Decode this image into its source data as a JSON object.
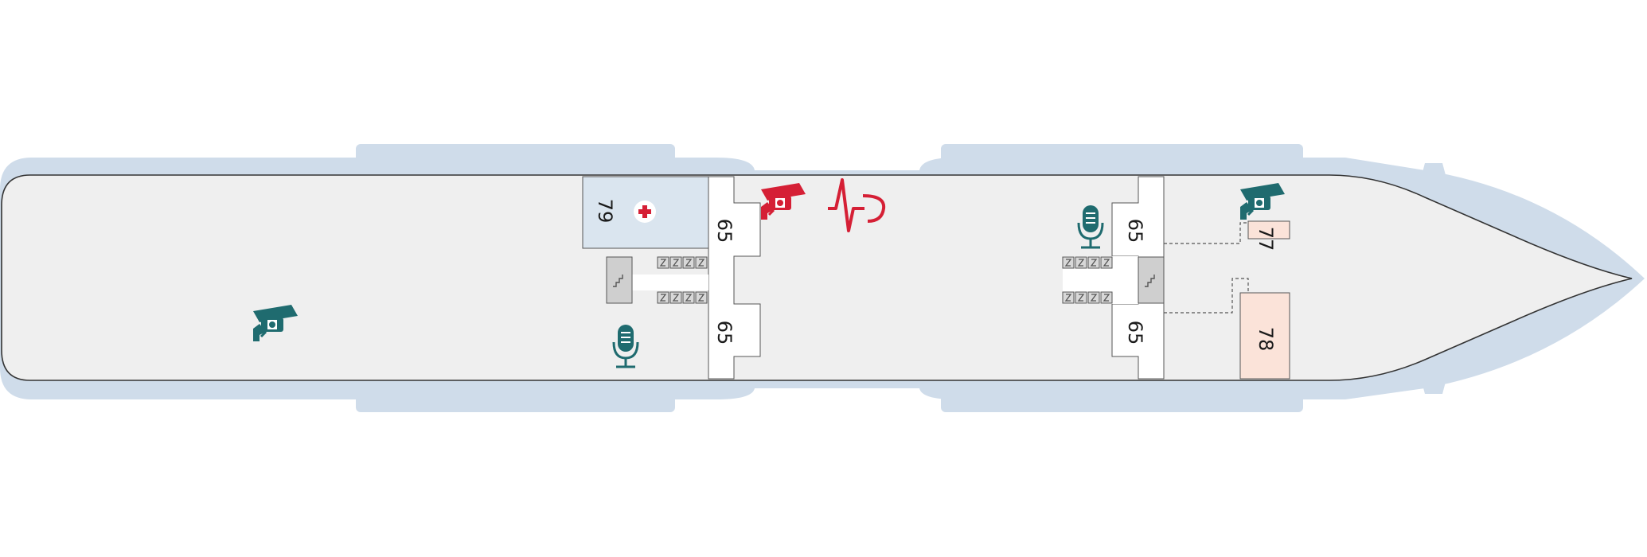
{
  "deck_plan": {
    "rooms": [
      {
        "id": "medical-center",
        "number": "79"
      },
      {
        "id": "corridor-aft-upper",
        "number": "65"
      },
      {
        "id": "corridor-aft-lower",
        "number": "65"
      },
      {
        "id": "corridor-fwd-upper",
        "number": "65"
      },
      {
        "id": "corridor-fwd-lower",
        "number": "65"
      },
      {
        "id": "room-77",
        "number": "77"
      },
      {
        "id": "room-78",
        "number": "78"
      }
    ],
    "icons": [
      {
        "name": "security-camera-icon",
        "color": "#1f6b6f"
      },
      {
        "name": "security-camera-icon",
        "color": "#d51f35"
      },
      {
        "name": "heartbeat-hook-icon",
        "color": "#d51f35"
      },
      {
        "name": "microphone-icon",
        "color": "#1f6b6f"
      },
      {
        "name": "medical-cross-icon",
        "color": "#d51f35"
      },
      {
        "name": "stairs-icon",
        "color": "#555555"
      },
      {
        "name": "elevator-icon",
        "color": "#555555"
      }
    ],
    "colors": {
      "water_outline": "#cfdcea",
      "deck_fill": "#efefef",
      "medical_fill": "#dae5ef",
      "room_78_fill": "#fbe3d9",
      "accent_teal": "#1f6b6f",
      "accent_red": "#d51f35"
    }
  }
}
